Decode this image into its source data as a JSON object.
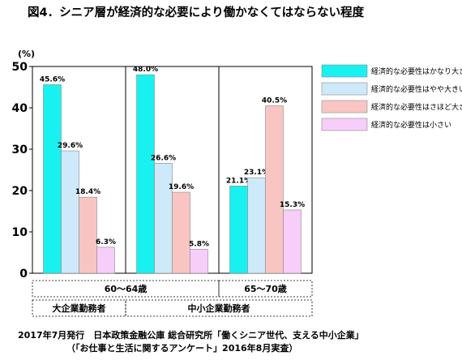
{
  "chart_data": {
    "type": "bar",
    "title": "図4．シニア層が経済的な必要により働かなくてはならない程度",
    "ylabel": "(%)",
    "ylim": [
      0,
      50
    ],
    "yticks": [
      0,
      10,
      20,
      30,
      40,
      50
    ],
    "grid": false,
    "legend_position": "right",
    "groups": [
      {
        "age_label": "60～64歳",
        "company_label": "大企業勤務者"
      },
      {
        "age_label": "60～64歳",
        "company_label": "中小企業勤務者"
      },
      {
        "age_label": "65～70歳",
        "company_label": "中小企業勤務者"
      }
    ],
    "age_spans": [
      {
        "label": "60～64歳",
        "from": 0,
        "to": 1
      },
      {
        "label": "65～70歳",
        "from": 2,
        "to": 2
      }
    ],
    "company_spans": [
      {
        "label": "大企業勤務者",
        "from": 0,
        "to": 0
      },
      {
        "label": "中小企業勤務者",
        "from": 1,
        "to": 2
      }
    ],
    "series": [
      {
        "name": "経済的な必要性はかなり大きい",
        "color": "#19f1f1",
        "values": [
          45.6,
          48.0,
          21.1
        ],
        "labels": [
          "45.6%",
          "48.0%",
          "21.1%"
        ]
      },
      {
        "name": "経済的な必要性はやや大きい",
        "color": "#cde9fa",
        "values": [
          29.6,
          26.6,
          23.1
        ],
        "labels": [
          "29.6%",
          "26.6%",
          "23.1%"
        ]
      },
      {
        "name": "経済的な必要性はさほど大きくない",
        "color": "#f9c5c3",
        "values": [
          18.4,
          19.6,
          40.5
        ],
        "labels": [
          "18.4%",
          "19.6%",
          "40.5%"
        ]
      },
      {
        "name": "経済的な必要性は小さい",
        "color": "#f7cdf9",
        "values": [
          6.3,
          5.8,
          15.3
        ],
        "labels": [
          "6.3%",
          "5.8%",
          "15.3%"
        ]
      }
    ]
  },
  "source": {
    "line1": "2017年7月発行　日本政策金融公庫 総合研究所「働くシニア世代、支える中小企業」",
    "line2": "（「お仕事と生活に関するアンケート」2016年8月実査）"
  }
}
